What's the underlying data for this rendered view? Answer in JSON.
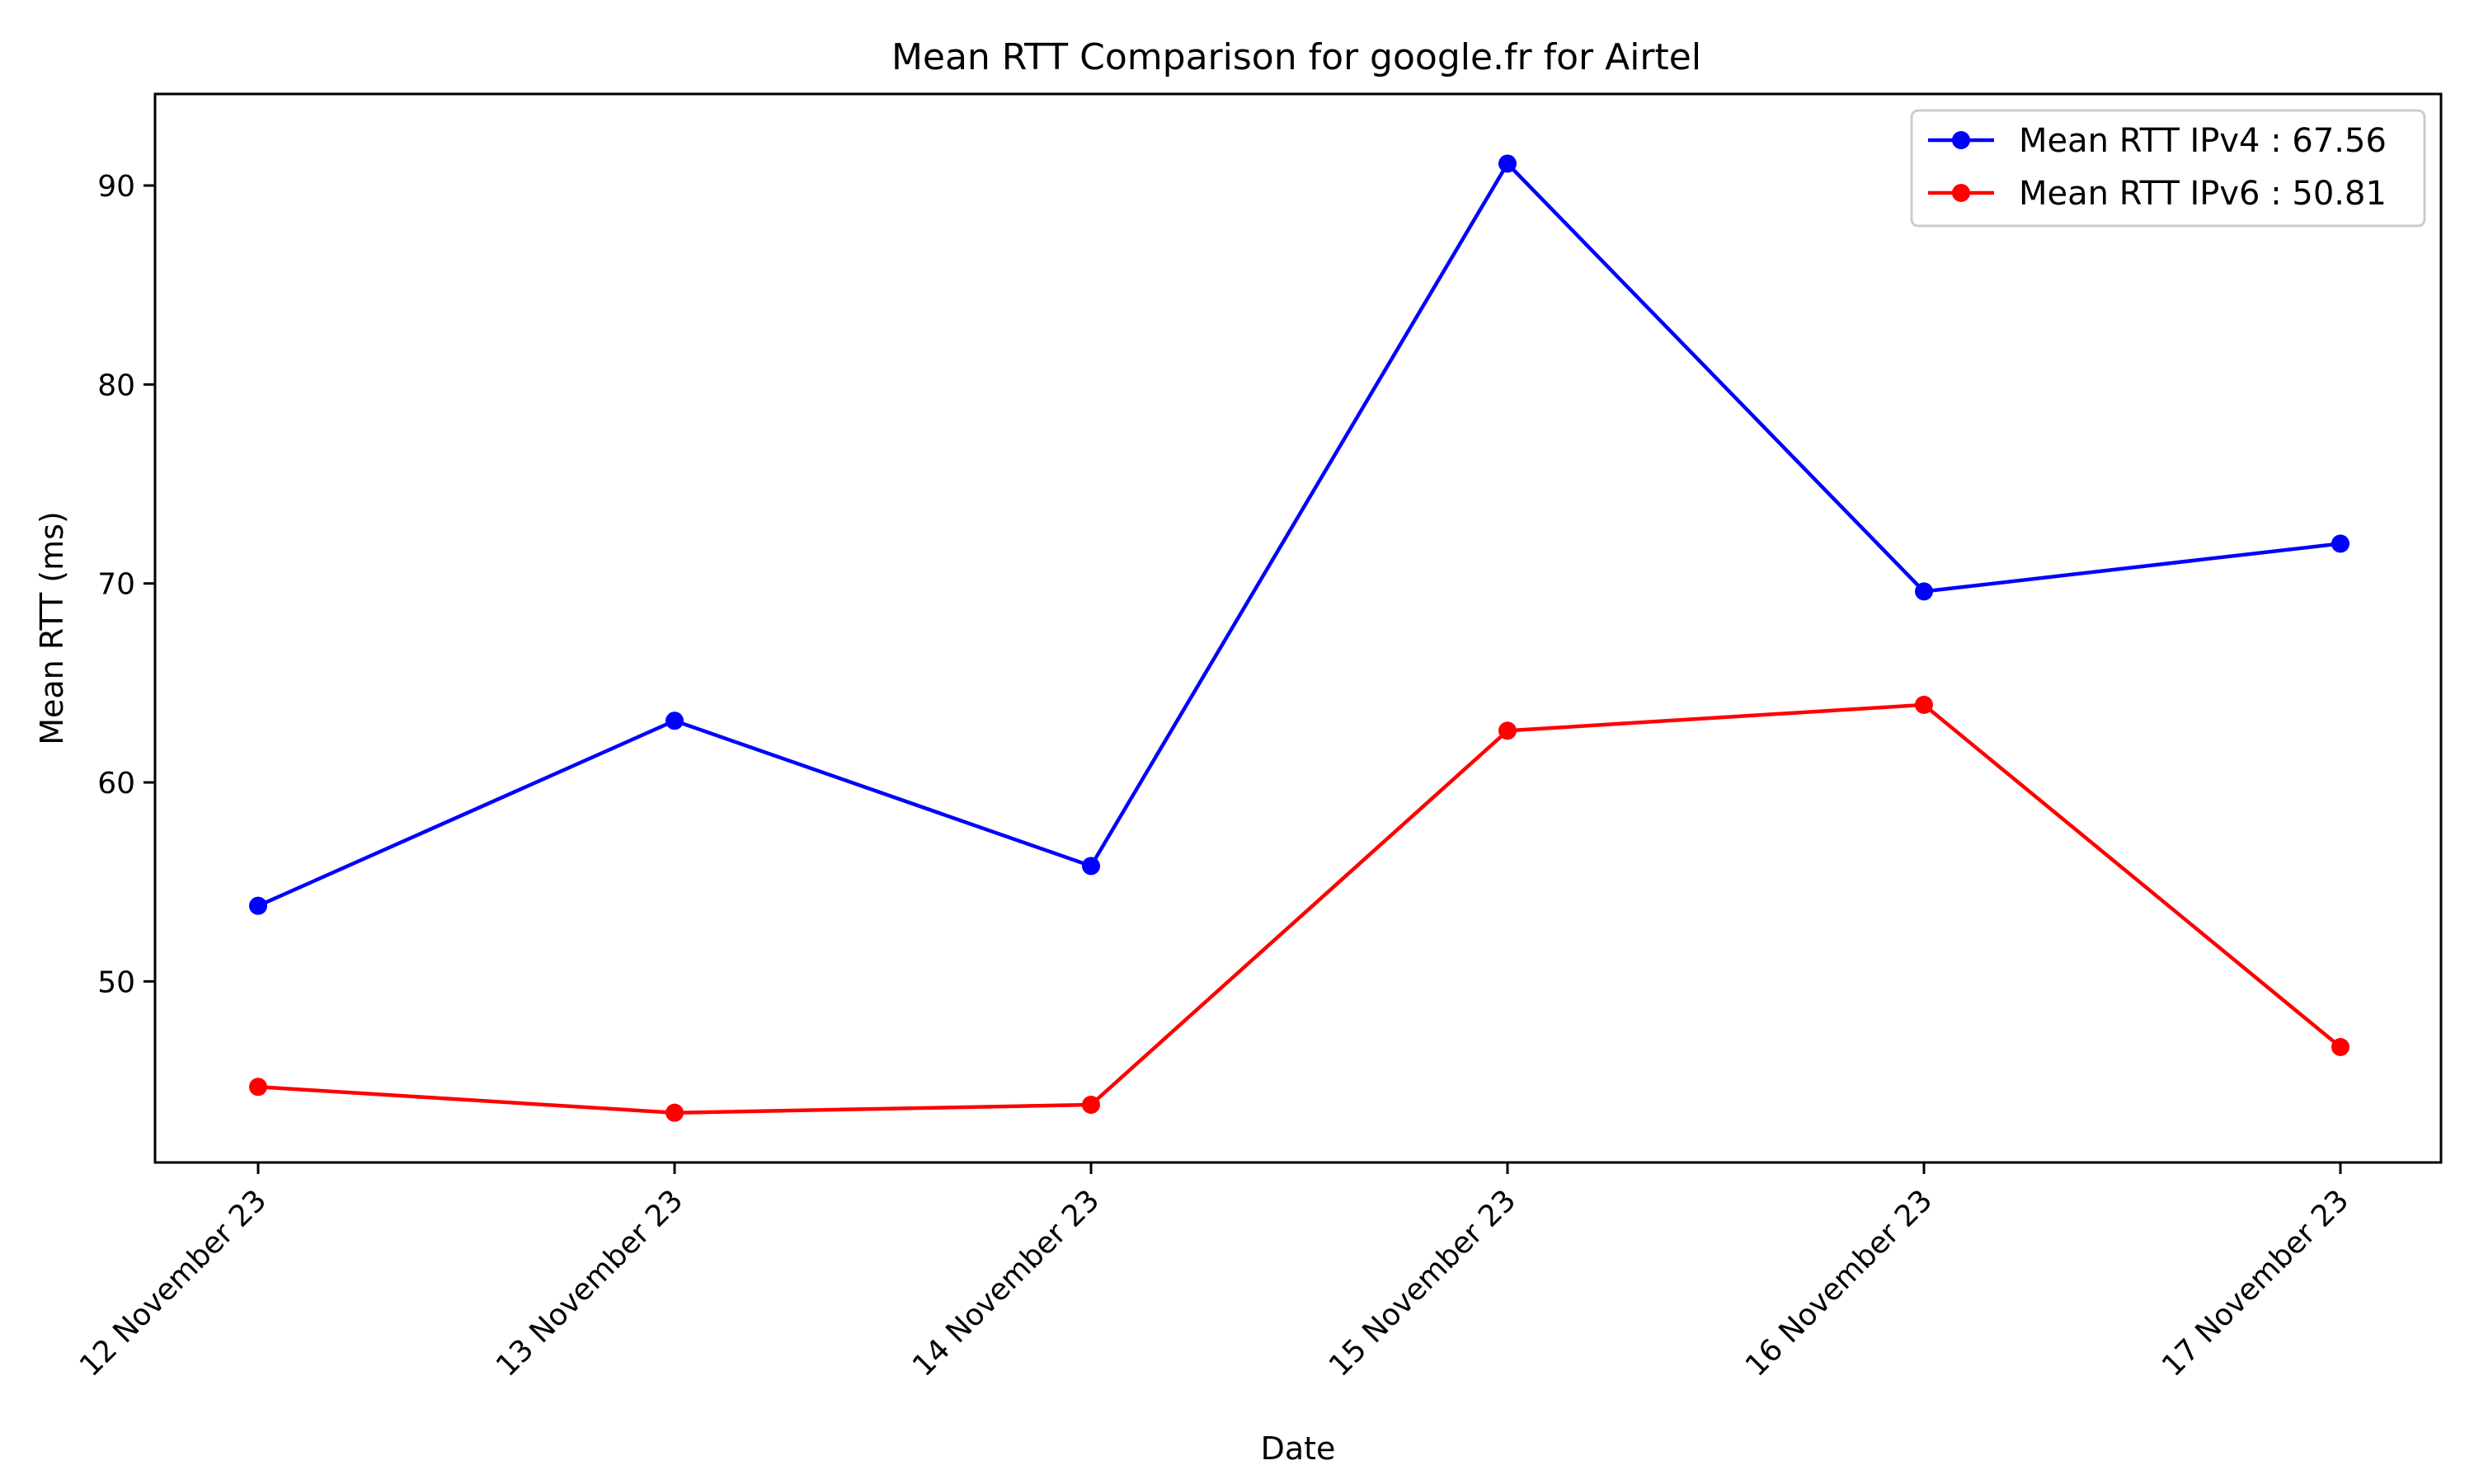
{
  "chart_data": {
    "type": "line",
    "title": "Mean RTT Comparison for google.fr for Airtel",
    "xlabel": "Date",
    "ylabel": "Mean RTT (ms)",
    "categories": [
      "12 November 23",
      "13 November 23",
      "14 November 23",
      "15 November 23",
      "16 November 23",
      "17 November 23"
    ],
    "yticks": [
      50,
      60,
      70,
      80,
      90
    ],
    "ylim": [
      40.9,
      94.6
    ],
    "grid": false,
    "legend_position": "top-right",
    "series": [
      {
        "name": "Mean RTT IPv4 : 67.56",
        "color": "#0000ff",
        "marker": "circle",
        "values": [
          53.8,
          63.1,
          55.8,
          91.1,
          69.6,
          72.0
        ]
      },
      {
        "name": "Mean RTT IPv6 : 50.81",
        "color": "#ff0000",
        "marker": "circle",
        "values": [
          44.7,
          43.4,
          43.8,
          62.6,
          63.9,
          46.7
        ]
      }
    ]
  }
}
